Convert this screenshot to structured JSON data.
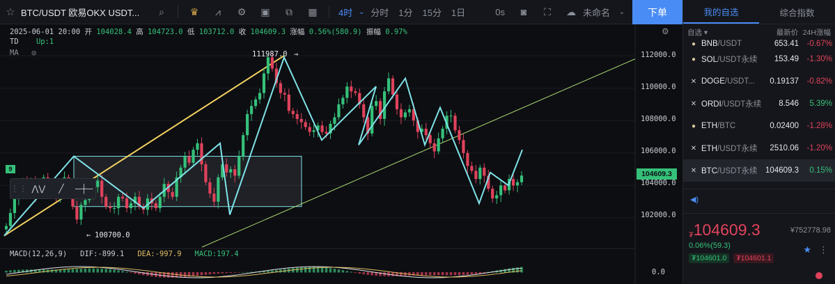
{
  "toolbar": {
    "symbol": "BTC/USDT 欧易OKX USDT...",
    "intervals": [
      "4时",
      "分时",
      "1分",
      "15分",
      "1日"
    ],
    "active_interval": "4时",
    "zero_seconds": "0s",
    "layout_name": "未命名",
    "order_button": "下单",
    "icons": [
      "star-icon",
      "search-icon",
      "crown-icon",
      "indicator-icon",
      "gear-icon",
      "image-icon",
      "copy-icon",
      "table-icon",
      "camera-icon",
      "fullscreen-icon",
      "cloud-icon"
    ]
  },
  "chart": {
    "ohlc": {
      "date": "2025-06-01 20:00",
      "open_label": "开",
      "open": "104028.4",
      "high_label": "高",
      "high": "104723.0",
      "low_label": "低",
      "low": "103712.0",
      "close_label": "收",
      "close": "104609.3",
      "change_label": "涨幅",
      "change": "0.56%(580.9)",
      "amplitude_label": "振幅",
      "amplitude": "0.97%"
    },
    "td_label": "TD",
    "td_value": "Up:1",
    "ma_label": "MA",
    "td_count_badge": "9",
    "high_annotation": "111987.0",
    "low_annotation": "100700.0",
    "price_axis": [
      "112000.0",
      "110000.0",
      "108000.0",
      "106000.0",
      "104000.0",
      "102000.0"
    ],
    "last_price": "104609.3",
    "macd": {
      "label": "MACD(12,26,9)",
      "dif": "DIF:-899.1",
      "dea": "DEA:-997.9",
      "macd": "MACD:197.4",
      "axis_zero": "0.0"
    },
    "colors": {
      "up": "#35c17a",
      "down": "#e0435c",
      "zigzag": "#7fe3e8",
      "trend_up": "#f3d160",
      "trend_line": "#a8d670"
    }
  },
  "chart_data": {
    "type": "candlestick",
    "interval": "4h",
    "ylim": [
      100200,
      113500
    ],
    "series": [
      {
        "name": "BTC/USDT",
        "closes": [
          101500,
          102300,
          103200,
          103900,
          104200,
          103700,
          104300,
          103400,
          103900,
          104500,
          104100,
          103800,
          103200,
          103900,
          104500,
          104000,
          102700,
          101900,
          102800,
          103100,
          103400,
          103900,
          104300,
          103300,
          102700,
          102600,
          102600,
          103300,
          103200,
          102600,
          102900,
          103300,
          102700,
          102500,
          103200,
          102900,
          102600,
          103300,
          104100,
          103600,
          103300,
          104500,
          105100,
          105800,
          105400,
          106200,
          106600,
          105300,
          104200,
          103500,
          103000,
          104500,
          105300,
          104800,
          105000,
          104600,
          105800,
          107100,
          108400,
          108900,
          109300,
          109700,
          110900,
          111900,
          111200,
          110300,
          109700,
          109600,
          108600,
          108400,
          108100,
          107900,
          107600,
          107300,
          107400,
          107700,
          107300,
          107200,
          107800,
          108200,
          109000,
          109400,
          110100,
          109800,
          109700,
          109000,
          108200,
          107200,
          108900,
          109200,
          108100,
          109800,
          110600,
          109600,
          108700,
          108200,
          108500,
          108700,
          108000,
          107300,
          107500,
          107100,
          106600,
          106100,
          106900,
          107500,
          108300,
          108300,
          107400,
          106800,
          106000,
          105200,
          104900,
          104400,
          105100,
          104600,
          103800,
          103200,
          103400,
          104000,
          103700,
          104400,
          104000,
          104200,
          104609
        ]
      }
    ]
  },
  "watchlist": {
    "tabs": [
      "我的自选",
      "综合指数"
    ],
    "header": {
      "name": "自选",
      "price": "最新价",
      "change": "24H涨幅"
    },
    "rows": [
      {
        "icon": "circle-icon",
        "name": "BNB",
        "sub": "/USDT",
        "price": "653.41",
        "change": "-0.67%",
        "dir": "down"
      },
      {
        "icon": "circle-icon",
        "name": "SOL",
        "sub": "/USDT永续",
        "price": "153.49",
        "change": "-1.30%",
        "dir": "down"
      },
      {
        "icon": "x-icon",
        "name": "DOGE",
        "sub": "/USDT...",
        "price": "0.19137",
        "change": "-0.82%",
        "dir": "down"
      },
      {
        "icon": "x-icon",
        "name": "ORDI",
        "sub": "/USDT永续",
        "price": "8.546",
        "change": "5.39%",
        "dir": "up"
      },
      {
        "icon": "circle-icon",
        "name": "ETH",
        "sub": "/BTC",
        "price": "0.02400",
        "change": "-1.28%",
        "dir": "down"
      },
      {
        "icon": "x-icon",
        "name": "ETH",
        "sub": "/USDT永续",
        "price": "2510.06",
        "change": "-1.20%",
        "dir": "down"
      },
      {
        "icon": "x-icon",
        "name": "BTC",
        "sub": "/USDT永续",
        "price": "104609.3",
        "change": "0.15%",
        "dir": "up"
      }
    ]
  },
  "quote": {
    "currency_symbol": "₮",
    "price": "104609.3",
    "cny": "¥752778.98",
    "change": "0.06%(59.3)",
    "bid": "₮104601.0",
    "ask": "₮104601.1"
  }
}
